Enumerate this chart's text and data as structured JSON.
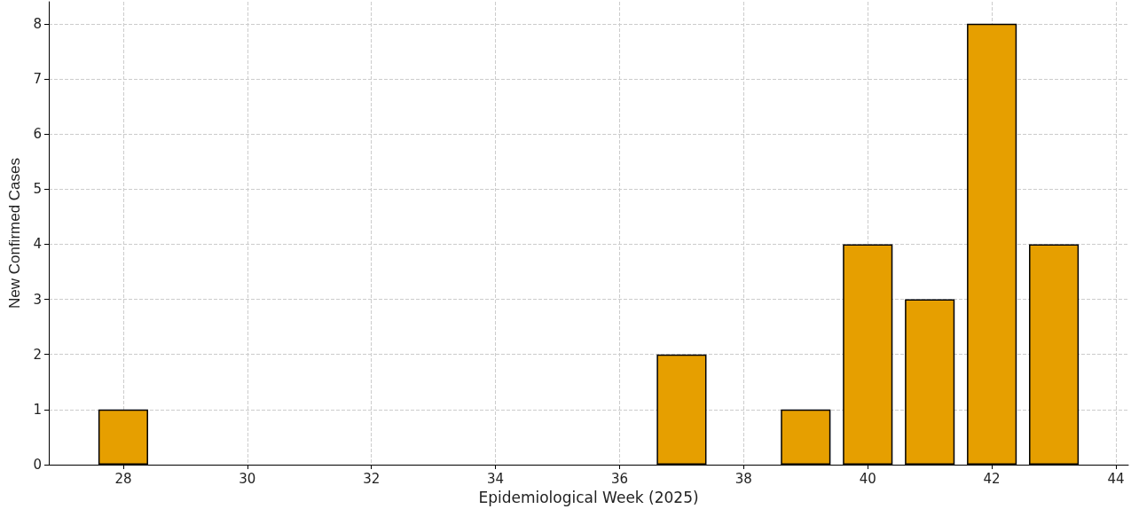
{
  "chart_data": {
    "type": "bar",
    "xlabel": "Epidemiological Week (2025)",
    "ylabel": "New Confirmed Cases",
    "x": [
      28,
      37,
      39,
      40,
      41,
      42,
      43
    ],
    "values": [
      1,
      2,
      1,
      4,
      3,
      8,
      4
    ],
    "color": "#e69f00",
    "xlim": [
      26.8,
      44.2
    ],
    "xticks": [
      28,
      30,
      32,
      34,
      36,
      38,
      40,
      42,
      44
    ],
    "ylim": [
      0,
      8.4
    ],
    "yticks": [
      0,
      1,
      2,
      3,
      4,
      5,
      6,
      7,
      8
    ],
    "grid": true
  }
}
